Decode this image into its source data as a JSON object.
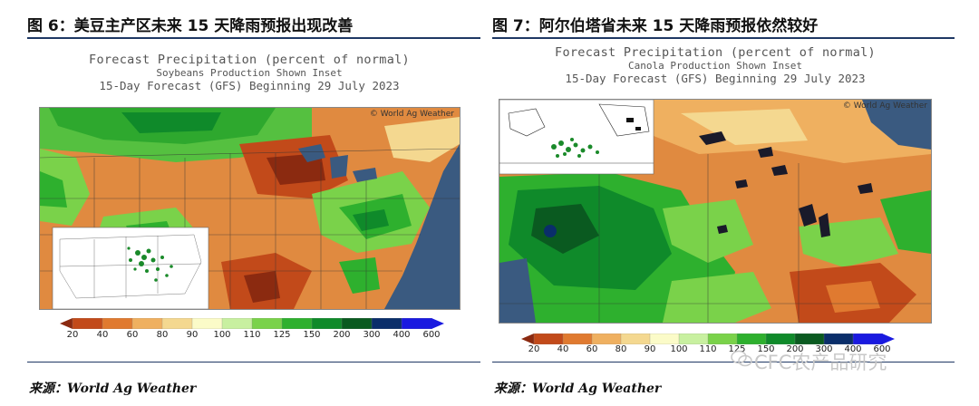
{
  "left": {
    "fig_title": "图 6：美豆主产区未来 15 天降雨预报出现改善",
    "head1": "Forecast Precipitation (percent of normal)",
    "head2": "Soybeans Production Shown Inset",
    "head3": "15-Day Forecast (GFS) Beginning 29 July 2023",
    "watermark": "© World Ag Weather",
    "source": "来源：World Ag Weather"
  },
  "right": {
    "fig_title": "图 7：阿尔伯塔省未来 15 天降雨预报依然较好",
    "head1": "Forecast Precipitation (percent of normal)",
    "head2": "Canola Production Shown Inset",
    "head3": "15-Day Forecast (GFS) Beginning 29 July 2023",
    "watermark": "© World Ag Weather",
    "source": "来源：World Ag Weather"
  },
  "legend": {
    "labels": [
      "20",
      "40",
      "60",
      "80",
      "90",
      "100",
      "110",
      "125",
      "150",
      "200",
      "300",
      "400",
      "600"
    ],
    "colors": [
      "#8b2a10",
      "#c24a1a",
      "#e07a30",
      "#efb060",
      "#f4d890",
      "#fbfbc8",
      "#c8f0a0",
      "#7ad24a",
      "#2eb02e",
      "#0f8a2a",
      "#0a5a20",
      "#0a2e6a",
      "#1a1ae0"
    ]
  },
  "page_watermark": "CFC农产品研究",
  "colors": {
    "ocean": "#3a5a80",
    "land_neutral": "#f0f0e6",
    "title_rule": "#1f3864"
  }
}
